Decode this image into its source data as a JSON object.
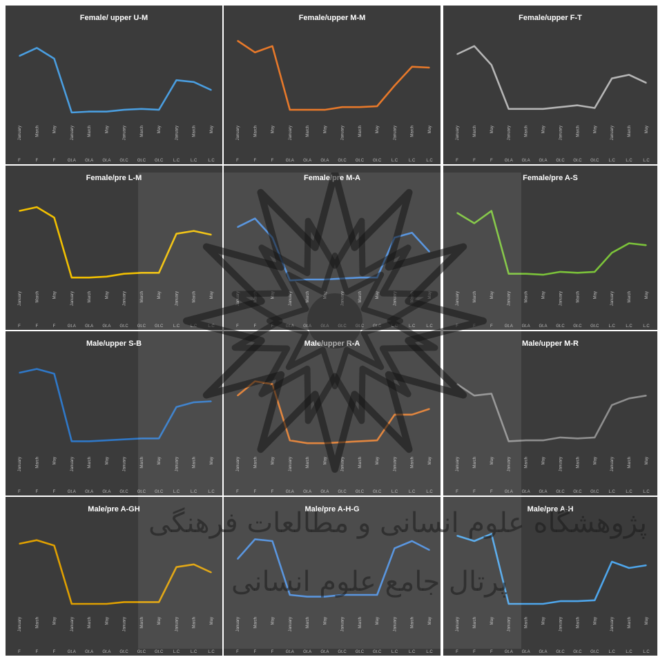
{
  "chart_data": [
    {
      "type": "line",
      "title": "Female/ upper U-M",
      "color": "#4a9ee0",
      "values": [
        73,
        82,
        70,
        10,
        11,
        11,
        13,
        14,
        13,
        46,
        44,
        35
      ],
      "categories": [
        "January",
        "March",
        "May",
        "January",
        "March",
        "May",
        "January",
        "March",
        "May",
        "January",
        "March",
        "May"
      ],
      "groups": [
        "F",
        "F",
        "F",
        "Gt.A",
        "Gt.A",
        "Gt.A",
        "Gt.C",
        "Gt.C",
        "Gt.C",
        "L.C",
        "L.C",
        "L.C"
      ]
    },
    {
      "type": "line",
      "title": "Female/upper M-M",
      "color": "#e8792a",
      "values": [
        90,
        77,
        84,
        13,
        13,
        13,
        16,
        16,
        17,
        40,
        61,
        60
      ],
      "categories": [
        "January",
        "March",
        "May",
        "January",
        "March",
        "May",
        "January",
        "March",
        "May",
        "January",
        "March",
        "May"
      ],
      "groups": [
        "F",
        "F",
        "F",
        "Gt.A",
        "Gt.A",
        "Gt.A",
        "Gt.C",
        "Gt.C",
        "Gt.C",
        "L.C",
        "L.C",
        "L.C"
      ]
    },
    {
      "type": "line",
      "title": "Female/upper F-T",
      "color": "#b6b6b6",
      "values": [
        75,
        84,
        63,
        14,
        14,
        14,
        16,
        18,
        15,
        48,
        52,
        43
      ],
      "categories": [
        "January",
        "March",
        "May",
        "January",
        "March",
        "May",
        "January",
        "March",
        "May",
        "January",
        "March",
        "May"
      ],
      "groups": [
        "F",
        "F",
        "F",
        "Gt.A",
        "Gt.A",
        "Gt.A",
        "Gt.C",
        "Gt.C",
        "Gt.C",
        "L.C",
        "L.C",
        "L.C"
      ]
    },
    {
      "type": "line",
      "title": "Female/pre L-M",
      "color": "#f2c000",
      "values": [
        80,
        84,
        73,
        10,
        10,
        11,
        14,
        15,
        15,
        56,
        59,
        55
      ],
      "categories": [
        "January",
        "March",
        "May",
        "January",
        "March",
        "May",
        "January",
        "March",
        "May",
        "January",
        "March",
        "May"
      ],
      "groups": [
        "F",
        "F",
        "F",
        "Gt.A",
        "Gt.A",
        "Gt.A",
        "Gt.C",
        "Gt.C",
        "Gt.C",
        "L.C",
        "L.C",
        "L.C"
      ]
    },
    {
      "type": "line",
      "title": "Female/pre M-A",
      "color": "#4a8cdc",
      "values": [
        63,
        72,
        52,
        7,
        8,
        8,
        9,
        10,
        10,
        52,
        57,
        37
      ],
      "categories": [
        "January",
        "March",
        "May",
        "January",
        "March",
        "May",
        "January",
        "March",
        "May",
        "January",
        "March",
        "May"
      ],
      "groups": [
        "F",
        "F",
        "F",
        "Gt.A",
        "Gt.A",
        "Gt.A",
        "Gt.C",
        "Gt.C",
        "Gt.C",
        "L.C",
        "L.C",
        "L.C"
      ]
    },
    {
      "type": "line",
      "title": "Female/pre A-S",
      "color": "#7cc43a",
      "values": [
        78,
        67,
        80,
        14,
        14,
        13,
        16,
        15,
        16,
        36,
        46,
        44
      ],
      "categories": [
        "January",
        "March",
        "May",
        "January",
        "March",
        "May",
        "January",
        "March",
        "May",
        "January",
        "March",
        "May"
      ],
      "groups": [
        "F",
        "F",
        "F",
        "Gt.A",
        "Gt.A",
        "Gt.A",
        "Gt.C",
        "Gt.C",
        "Gt.C",
        "L.C",
        "L.C",
        "L.C"
      ]
    },
    {
      "type": "line",
      "title": "Male/upper S-B",
      "color": "#2f78c8",
      "values": [
        84,
        88,
        83,
        12,
        12,
        13,
        14,
        15,
        15,
        48,
        53,
        54
      ],
      "categories": [
        "January",
        "March",
        "May",
        "January",
        "March",
        "May",
        "January",
        "March",
        "May",
        "January",
        "March",
        "May"
      ],
      "groups": [
        "F",
        "F",
        "F",
        "Gt.A",
        "Gt.A",
        "Gt.A",
        "Gt.C",
        "Gt.C",
        "Gt.C",
        "L.C",
        "L.C",
        "L.C"
      ]
    },
    {
      "type": "line",
      "title": "Male/upper R-A",
      "color": "#e07a2c",
      "values": [
        60,
        75,
        72,
        13,
        10,
        10,
        11,
        12,
        13,
        40,
        40,
        46
      ],
      "categories": [
        "January",
        "March",
        "May",
        "January",
        "March",
        "May",
        "January",
        "March",
        "May",
        "January",
        "March",
        "May"
      ],
      "groups": [
        "F",
        "F",
        "F",
        "Gt.A",
        "Gt.A",
        "Gt.A",
        "Gt.C",
        "Gt.C",
        "Gt.C",
        "L.C",
        "L.C",
        "L.C"
      ]
    },
    {
      "type": "line",
      "title": "Male/upper M-R",
      "color": "#8f8f8f",
      "values": [
        72,
        60,
        62,
        12,
        13,
        13,
        16,
        15,
        16,
        50,
        57,
        60
      ],
      "categories": [
        "January",
        "March",
        "May",
        "January",
        "March",
        "May",
        "January",
        "March",
        "May",
        "January",
        "March",
        "May"
      ],
      "groups": [
        "F",
        "F",
        "F",
        "Gt.A",
        "Gt.A",
        "Gt.A",
        "Gt.C",
        "Gt.C",
        "Gt.C",
        "L.C",
        "L.C",
        "L.C"
      ]
    },
    {
      "type": "line",
      "title": "Male/pre A-GH",
      "color": "#e0a000",
      "values": [
        77,
        81,
        75,
        10,
        10,
        10,
        12,
        12,
        12,
        51,
        54,
        45
      ],
      "categories": [
        "January",
        "March",
        "May",
        "January",
        "March",
        "May",
        "January",
        "March",
        "May",
        "January",
        "March",
        "May"
      ],
      "groups": [
        "F",
        "F",
        "F",
        "Gt.A",
        "Gt.A",
        "Gt.A",
        "Gt.C",
        "Gt.C",
        "Gt.C",
        "L.C",
        "L.C",
        "L.C"
      ]
    },
    {
      "type": "line",
      "title": "Male/pre A-H-G",
      "color": "#4a8cdc",
      "values": [
        60,
        82,
        80,
        20,
        18,
        18,
        20,
        20,
        20,
        72,
        80,
        70
      ],
      "categories": [
        "January",
        "March",
        "May",
        "January",
        "March",
        "May",
        "January",
        "March",
        "May",
        "January",
        "March",
        "May"
      ],
      "groups": [
        "F",
        "F",
        "F",
        "Gt.A",
        "Gt.A",
        "Gt.A",
        "Gt.C",
        "Gt.C",
        "Gt.C",
        "L.C",
        "L.C",
        "L.C"
      ]
    },
    {
      "type": "line",
      "title": "Male/pre A-H",
      "color": "#4ea6ec",
      "values": [
        86,
        80,
        88,
        10,
        10,
        10,
        13,
        13,
        14,
        57,
        50,
        53
      ],
      "categories": [
        "January",
        "March",
        "May",
        "January",
        "March",
        "May",
        "January",
        "March",
        "May",
        "January",
        "March",
        "May"
      ],
      "groups": [
        "F",
        "F",
        "F",
        "Gt.A",
        "Gt.A",
        "Gt.A",
        "Gt.C",
        "Gt.C",
        "Gt.C",
        "L.C",
        "L.C",
        "L.C"
      ]
    }
  ],
  "watermark": {
    "text_line_1": "پژوهشگاه علوم انسانی و مطالعات فرهنگی",
    "text_line_2": "پرتال جامع علوم انسانی"
  }
}
